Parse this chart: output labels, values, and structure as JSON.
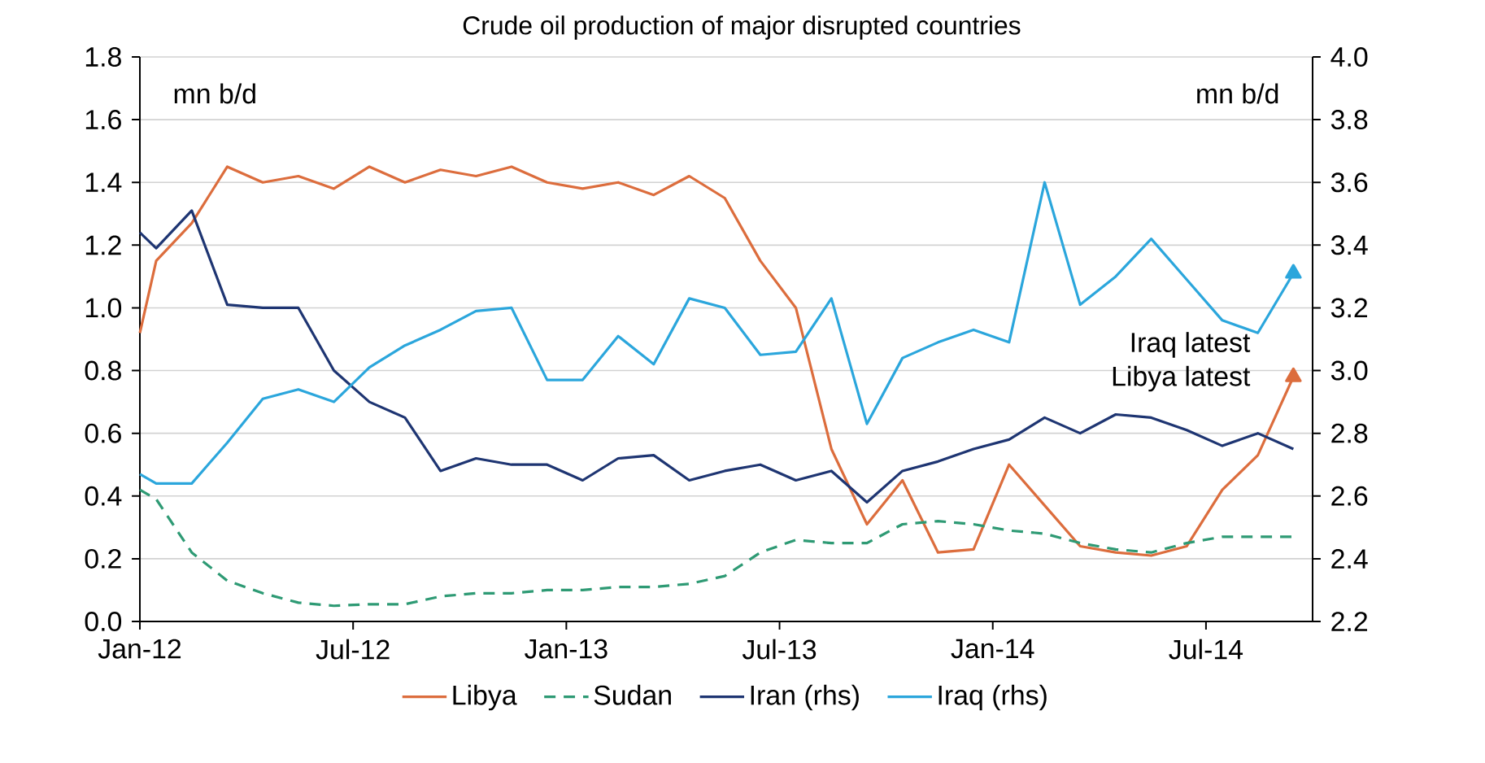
{
  "chart_data": {
    "type": "line",
    "title": "Crude oil production of major disrupted countries",
    "ylabel": "mn b/d",
    "y2label": "mn b/d",
    "x": [
      "2012-01-01",
      "2012-01-15",
      "2012-02-15",
      "2012-03-15",
      "2012-04-15",
      "2012-05-15",
      "2012-06-15",
      "2012-07-15",
      "2012-08-15",
      "2012-09-15",
      "2012-10-15",
      "2012-11-15",
      "2012-12-15",
      "2013-01-15",
      "2013-02-15",
      "2013-03-15",
      "2013-04-15",
      "2013-05-15",
      "2013-06-15",
      "2013-07-15",
      "2013-08-15",
      "2013-09-15",
      "2013-10-15",
      "2013-11-15",
      "2013-12-15",
      "2014-01-15",
      "2014-02-15",
      "2014-03-15",
      "2014-04-15",
      "2014-05-15",
      "2014-06-15",
      "2014-07-15",
      "2014-08-15",
      "2014-09-15"
    ],
    "series": [
      {
        "name": "Libya",
        "color": "#dc6d3d",
        "values": [
          0.92,
          1.15,
          1.27,
          1.45,
          1.4,
          1.42,
          1.38,
          1.45,
          1.4,
          1.44,
          1.42,
          1.45,
          1.4,
          1.38,
          1.4,
          1.36,
          1.42,
          1.35,
          1.15,
          1.0,
          0.55,
          0.31,
          0.45,
          0.22,
          0.23,
          0.5,
          0.37,
          0.24,
          0.22,
          0.21,
          0.24,
          0.42,
          0.53,
          0.78
        ]
      },
      {
        "name": "Sudan",
        "color": "#2e9a74",
        "line_style": "dashed",
        "values": [
          0.42,
          0.39,
          0.22,
          0.13,
          0.09,
          0.06,
          0.05,
          0.055,
          0.055,
          0.08,
          0.09,
          0.09,
          0.1,
          0.1,
          0.11,
          0.11,
          0.12,
          0.145,
          0.22,
          0.26,
          0.25,
          0.25,
          0.31,
          0.32,
          0.31,
          0.29,
          0.28,
          0.25,
          0.23,
          0.22,
          0.25,
          0.27,
          0.27,
          0.27
        ]
      },
      {
        "name": "Iran (rhs)",
        "color": "#1e3572",
        "axis": "y2",
        "values": [
          3.44,
          3.39,
          3.51,
          3.21,
          3.2,
          3.2,
          3.0,
          2.9,
          2.85,
          2.68,
          2.72,
          2.7,
          2.7,
          2.65,
          2.72,
          2.73,
          2.65,
          2.68,
          2.7,
          2.65,
          2.68,
          2.58,
          2.68,
          2.71,
          2.75,
          2.78,
          2.85,
          2.8,
          2.86,
          2.85,
          2.81,
          2.76,
          2.8,
          2.75
        ]
      },
      {
        "name": "Iraq (rhs)",
        "color": "#2ba6dc",
        "axis": "y2",
        "values": [
          2.67,
          2.64,
          2.64,
          2.77,
          2.91,
          2.94,
          2.9,
          3.01,
          3.08,
          3.13,
          3.19,
          3.2,
          2.97,
          2.97,
          3.11,
          3.02,
          3.23,
          3.2,
          3.05,
          3.06,
          3.23,
          2.83,
          3.04,
          3.09,
          3.13,
          3.09,
          3.6,
          3.21,
          3.3,
          3.42,
          3.29,
          3.16,
          3.12,
          3.31
        ]
      },
      {
        "type": "scatter",
        "color": "#dc6d3d",
        "marker": "triangle",
        "x": [
          "2014-09-15"
        ],
        "values": [
          0.78
        ]
      },
      {
        "type": "scatter",
        "color": "#2ba6dc",
        "marker": "triangle",
        "axis": "y2",
        "x": [
          "2014-09-15"
        ],
        "values": [
          3.31
        ]
      }
    ],
    "xlim": [
      "2012-01",
      "2014-10"
    ],
    "xticks": [
      {
        "value": "2012-01",
        "label": "Jan-12"
      },
      {
        "value": "2012-07",
        "label": "Jul-12"
      },
      {
        "value": "2013-01",
        "label": "Jan-13"
      },
      {
        "value": "2013-07",
        "label": "Jul-13"
      },
      {
        "value": "2014-01",
        "label": "Jan-14"
      },
      {
        "value": "2014-07",
        "label": "Jul-14"
      }
    ],
    "ylim": [
      0,
      1.8
    ],
    "yticks": [
      {
        "value": 0,
        "label": "0.0"
      },
      0.2,
      0.4,
      0.6,
      0.8,
      {
        "value": 1,
        "label": "1.0"
      },
      1.2,
      1.4,
      1.6,
      1.8
    ],
    "y2lim": [
      2.2,
      4.0
    ],
    "y2ticks": [
      2.2,
      2.4,
      2.6,
      2.8,
      {
        "value": 3,
        "label": "3.0"
      },
      3.2,
      3.4,
      3.6,
      3.8,
      {
        "value": 4,
        "label": "4.0"
      }
    ],
    "annotations": [
      "Iraq latest",
      "Libya latest"
    ],
    "grid": "y",
    "legend": "bottom"
  }
}
